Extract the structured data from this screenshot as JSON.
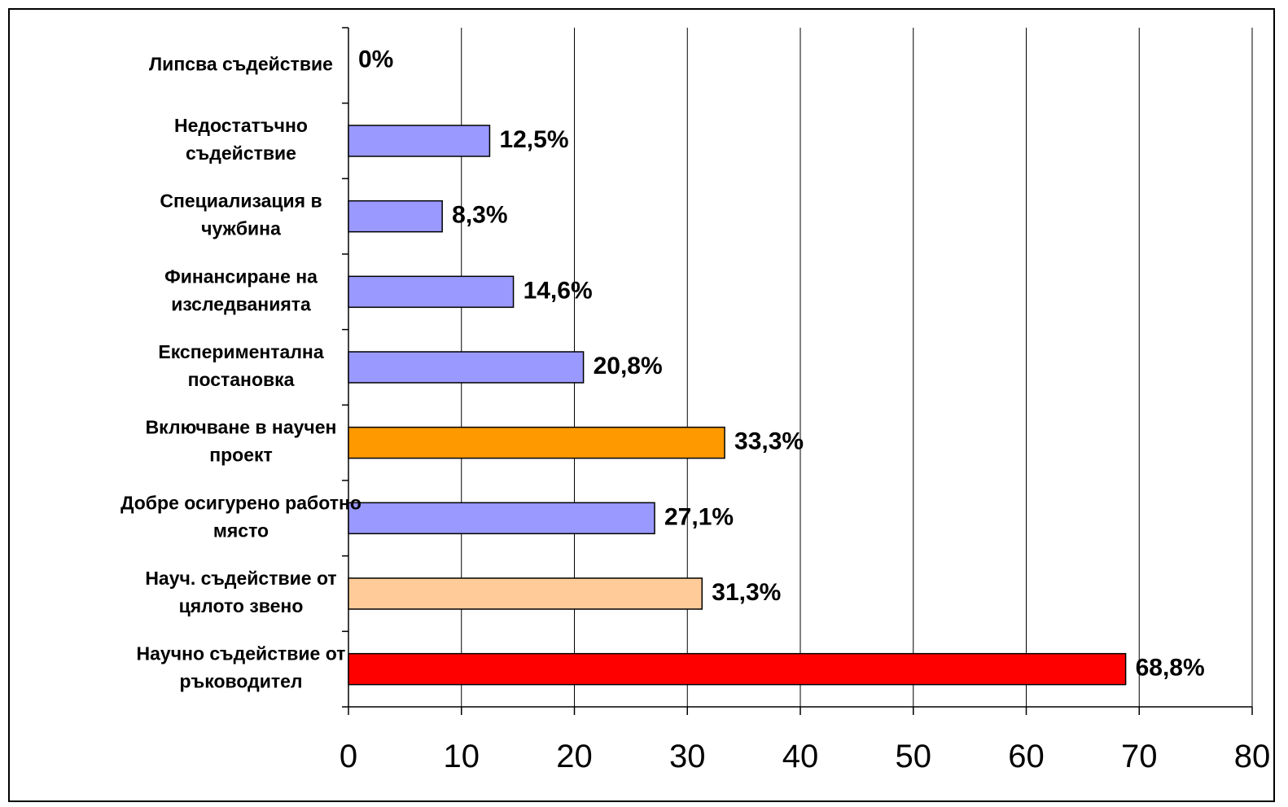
{
  "chart_data": {
    "type": "bar",
    "orientation": "horizontal",
    "title": "",
    "xlabel": "",
    "ylabel": "",
    "xlim": [
      0,
      80
    ],
    "xticks": [
      0,
      10,
      20,
      30,
      40,
      50,
      60,
      70,
      80
    ],
    "grid": "vertical",
    "legend": "none",
    "categories": [
      [
        "Липсва съдействие"
      ],
      [
        "Недостатъчно",
        "съдействие"
      ],
      [
        "Специализация в",
        "чужбина"
      ],
      [
        "Финансиране на",
        "изследванията"
      ],
      [
        "Експериментална",
        "постановка"
      ],
      [
        "Включване в научен",
        "проект"
      ],
      [
        "Добре осигурено работно",
        "място"
      ],
      [
        "Науч. съдействие от",
        "цялото звено"
      ],
      [
        "Научно съдействие от",
        "ръководител"
      ]
    ],
    "values": [
      0,
      12.5,
      8.3,
      14.6,
      20.8,
      33.3,
      27.1,
      31.3,
      68.8
    ],
    "value_labels": [
      "0%",
      "12,5%",
      "8,3%",
      "14,6%",
      "20,8%",
      "33,3%",
      "27,1%",
      "31,3%",
      "68,8%"
    ],
    "bar_colors": [
      "#9999FF",
      "#9999FF",
      "#9999FF",
      "#9999FF",
      "#9999FF",
      "#FF9900",
      "#9999FF",
      "#FFCC99",
      "#FF0000"
    ]
  }
}
